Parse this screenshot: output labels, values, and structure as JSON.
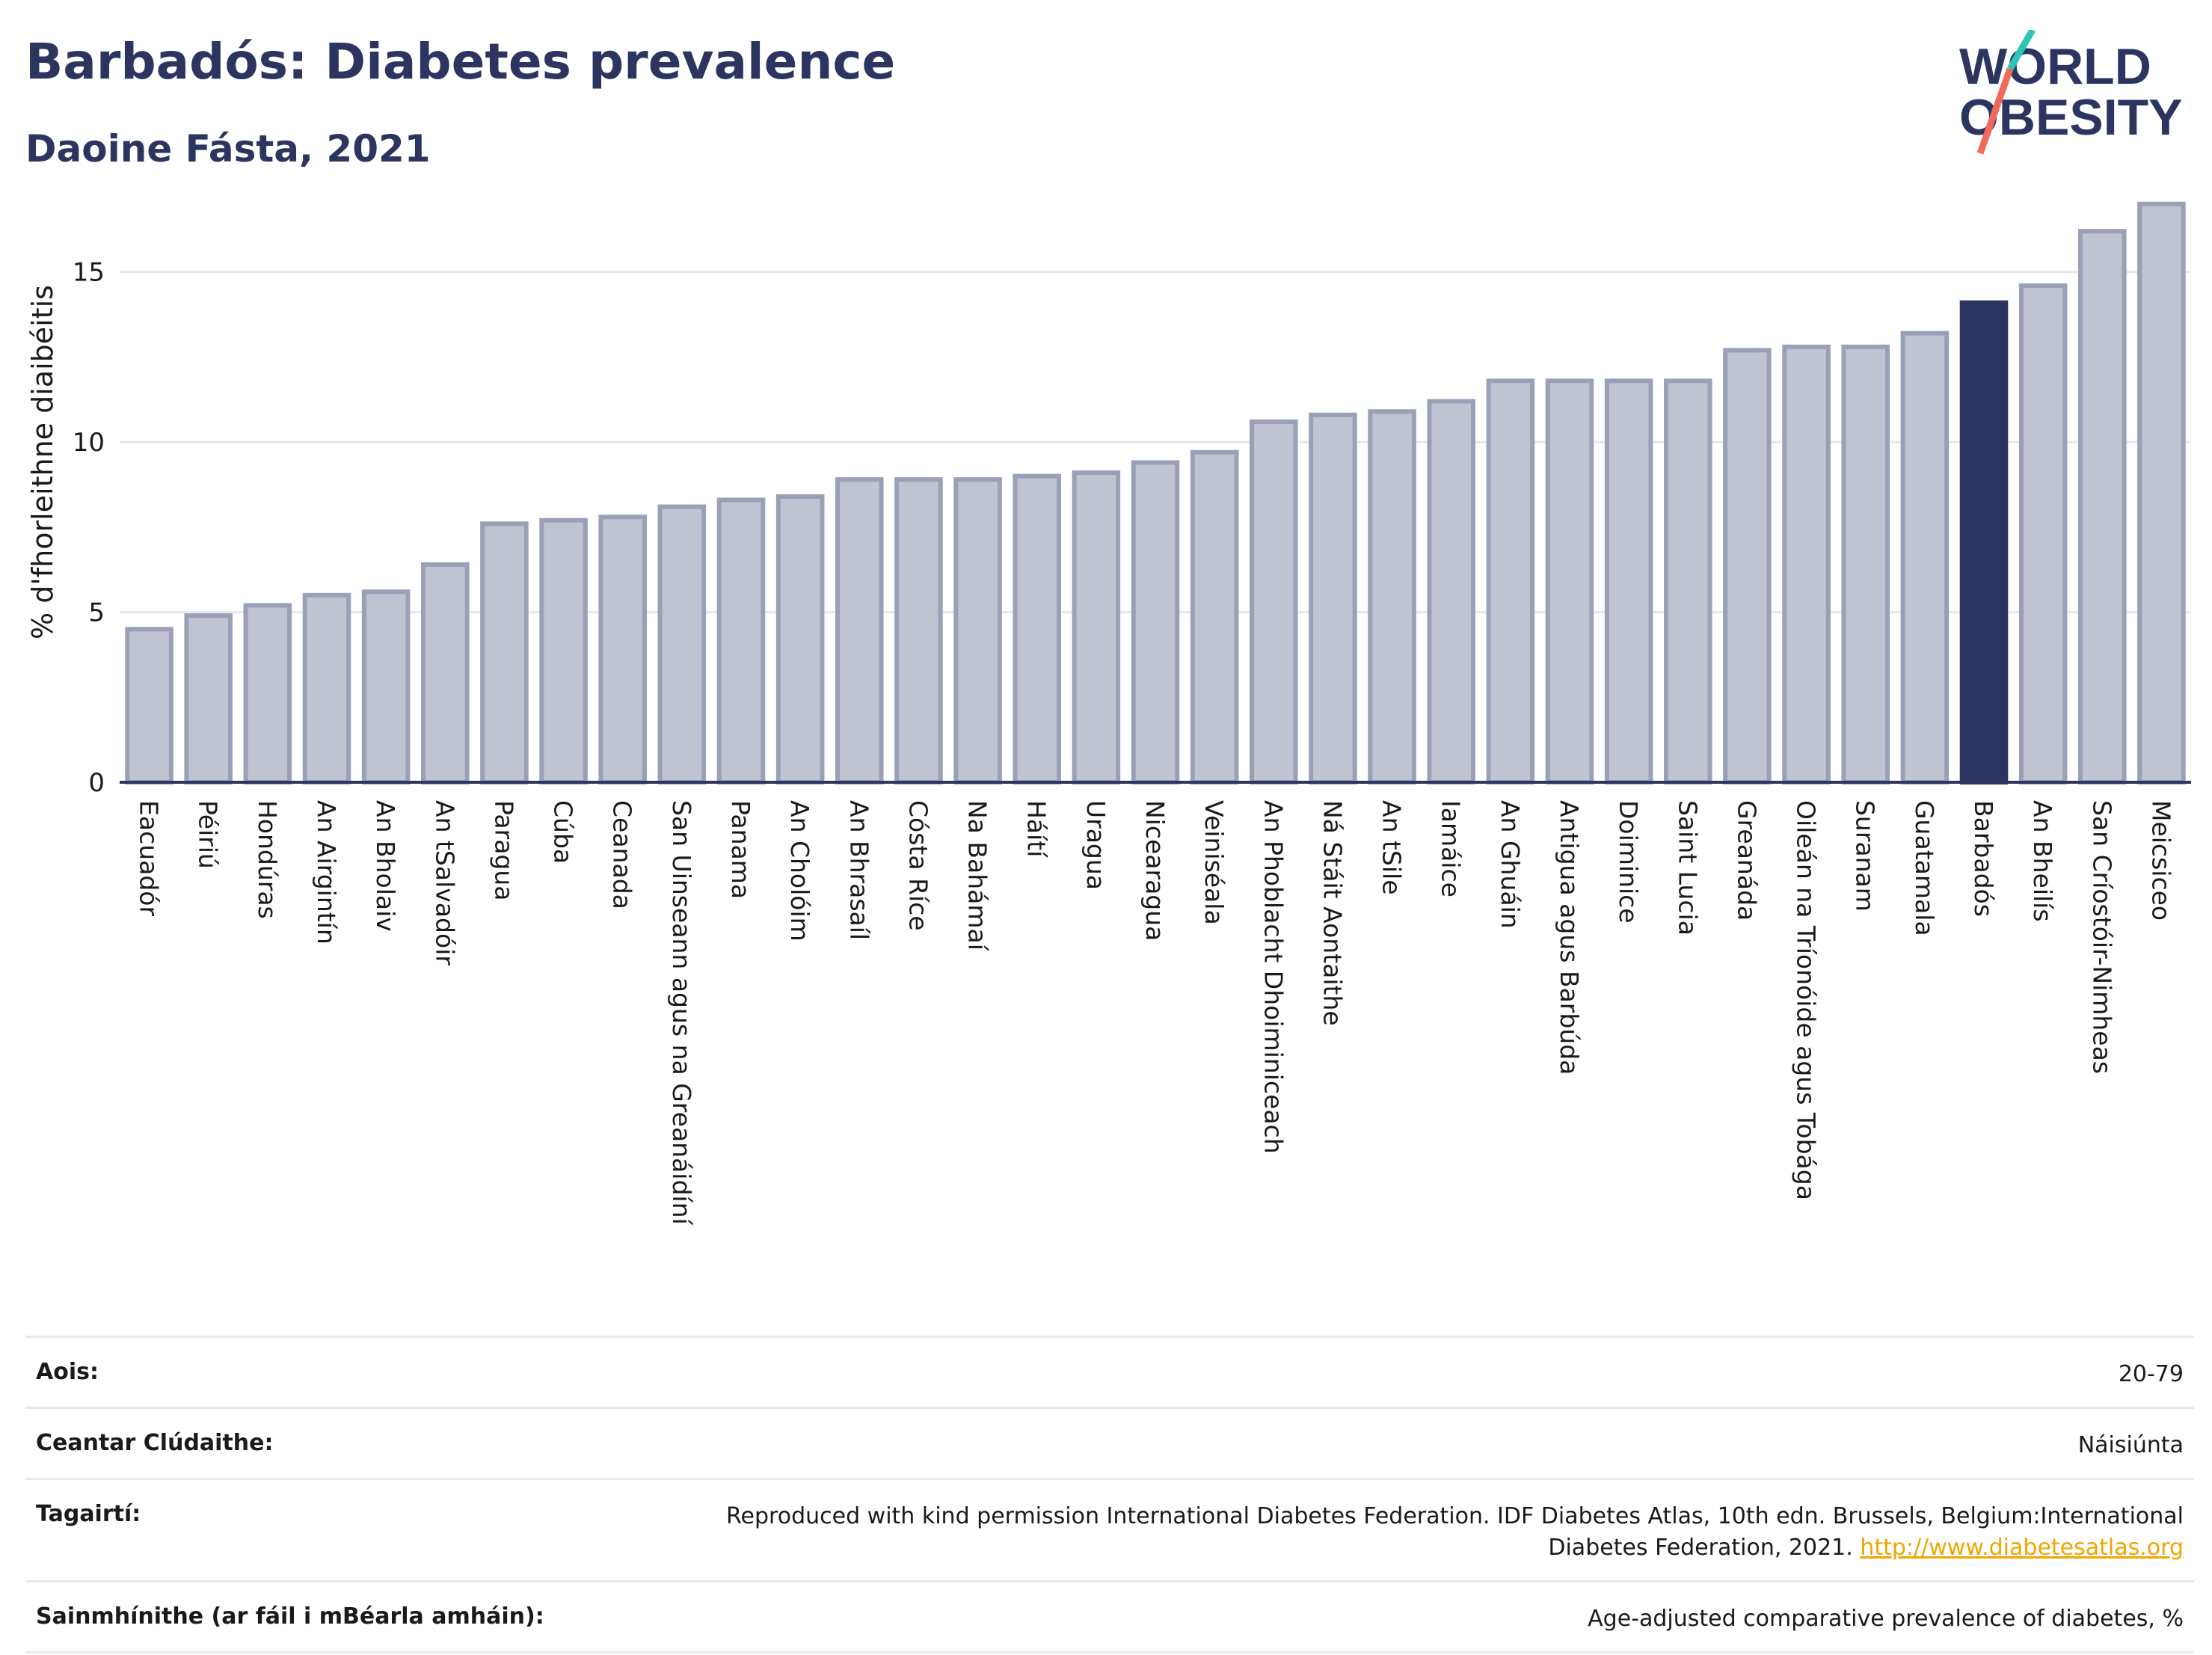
{
  "header": {
    "title": "Barbadós: Diabetes prevalence",
    "subtitle": "Daoine Fásta, 2021",
    "logo_line1": "WORLD",
    "logo_line2": "OBESITY"
  },
  "colors": {
    "bar_default": "#c0c4d1",
    "bar_default_stroke": "#9aa0b8",
    "bar_highlight": "#2b3560",
    "logo_teal": "#2ec4b6",
    "logo_coral": "#ef6a5a",
    "link": "#f0a500"
  },
  "chart_data": {
    "type": "bar",
    "ylabel": "% d'fhorleithne diaibéitis",
    "ylim": [
      0,
      17.5
    ],
    "yticks": [
      0,
      5,
      10,
      15
    ],
    "grid": true,
    "highlight": "Barbadós",
    "categories": [
      "Eacuadór",
      "Péiriú",
      "Hondúras",
      "An Airgintín",
      "An Bholaiv",
      "An tSalvadóir",
      "Paragua",
      "Cúba",
      "Ceanada",
      "San Uinseann agus na Greanáidíní",
      "Panama",
      "An Cholóim",
      "An Bhrasaíl",
      "Cósta Ríce",
      "Na Bahámaí",
      "Háítí",
      "Uragua",
      "Nicearagua",
      "Veiniséala",
      "An Phoblacht Dhoiminiceach",
      "Ná Stáit Aontaithe",
      "An tSile",
      "Iamáice",
      "An Ghuáin",
      "Antigua agus Barbúda",
      "Doiminice",
      "Saint Lucia",
      "Greanáda",
      "Oileán na Tríonóide agus Tobága",
      "Suranam",
      "Guatamala",
      "Barbadós",
      "An Bheilís",
      "San Críostóir-Nimheas",
      "Meicsiceo"
    ],
    "values": [
      4.5,
      4.9,
      5.2,
      5.5,
      5.6,
      6.4,
      7.6,
      7.7,
      7.8,
      8.1,
      8.3,
      8.4,
      8.9,
      8.9,
      8.9,
      9.0,
      9.1,
      9.4,
      9.7,
      10.6,
      10.8,
      10.9,
      11.2,
      11.8,
      11.8,
      11.8,
      11.8,
      12.7,
      12.8,
      12.8,
      13.2,
      14.1,
      14.6,
      16.2,
      17.0
    ]
  },
  "footer": {
    "rows": [
      {
        "label": "Aois:",
        "value": "20-79"
      },
      {
        "label": "Ceantar Clúdaithe:",
        "value": "Náisiúnta"
      },
      {
        "label": "Tagairtí:",
        "value": "Reproduced with kind permission International Diabetes Federation.  IDF Diabetes Atlas, 10th edn. Brussels, Belgium:International Diabetes Federation, 2021.",
        "link": "http://www.diabetesatlas.org"
      },
      {
        "label": "Sainmhínithe (ar fáil i mBéarla amháin):",
        "value": "Age-adjusted comparative prevalence of diabetes, %"
      }
    ]
  }
}
